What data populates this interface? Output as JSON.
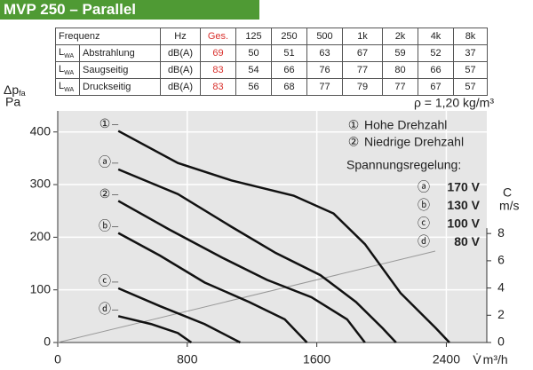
{
  "header": {
    "title": "MVP 250 – Parallel"
  },
  "table": {
    "columns": [
      "Frequenz",
      "Hz",
      "Ges.",
      "125",
      "250",
      "500",
      "1k",
      "2k",
      "4k",
      "8k"
    ],
    "symbol": "L",
    "symbol_subscript": "WA",
    "rows": [
      {
        "label": "Abstrahlung",
        "unit": "dB(A)",
        "values": [
          69,
          50,
          51,
          63,
          67,
          59,
          52,
          37
        ]
      },
      {
        "label": "Saugseitig",
        "unit": "dB(A)",
        "values": [
          83,
          54,
          66,
          76,
          77,
          80,
          66,
          57
        ]
      },
      {
        "label": "Druckseitig",
        "unit": "dB(A)",
        "values": [
          83,
          56,
          68,
          77,
          79,
          77,
          67,
          57
        ]
      }
    ],
    "total_color": "#d9302c"
  },
  "chart_data": {
    "type": "line",
    "ylabel": "Δp",
    "ylabel_subscript": "fa",
    "yunit": "Pa",
    "xlabel": "V̇",
    "xunit": "m³/h",
    "y2label": "C",
    "y2unit": "m/s",
    "annotation": "ρ = 1,20 kg/m³",
    "xlim": [
      0,
      2650
    ],
    "xticks": [
      0,
      800,
      1600,
      2400
    ],
    "ylim": [
      0,
      440
    ],
    "yticks": [
      0,
      100,
      200,
      300,
      400
    ],
    "y2lim": [
      0,
      17
    ],
    "y2ticks": [
      0,
      2,
      4,
      6,
      8
    ],
    "grid": true,
    "series": [
      {
        "name": "①",
        "color": "#111111",
        "marker_color": "#d9302c",
        "x": [
          374,
          742,
          1072,
          1457,
          1704,
          1897,
          2117,
          2336,
          2419
        ],
        "values": [
          402,
          341,
          308,
          279,
          245,
          187,
          94,
          27,
          0
        ]
      },
      {
        "name": "ⓐ",
        "color": "#111111",
        "marker_color": "#111111",
        "x": [
          374,
          742,
          1072,
          1347,
          1622,
          1842,
          2007,
          2089
        ],
        "values": [
          329,
          282,
          220,
          170,
          128,
          77,
          27,
          0
        ]
      },
      {
        "name": "②",
        "color": "#111111",
        "marker_color": "#d9302c",
        "x": [
          374,
          687,
          1017,
          1292,
          1567,
          1787,
          1897
        ],
        "values": [
          269,
          215,
          161,
          119,
          86,
          44,
          0
        ]
      },
      {
        "name": "ⓑ",
        "color": "#111111",
        "marker_color": "#111111",
        "x": [
          374,
          632,
          907,
          1182,
          1402,
          1539
        ],
        "values": [
          208,
          165,
          114,
          77,
          44,
          0
        ]
      },
      {
        "name": "ⓒ",
        "color": "#111111",
        "marker_color": "#111111",
        "x": [
          374,
          632,
          907,
          1127
        ],
        "values": [
          103,
          69,
          35,
          0
        ]
      },
      {
        "name": "ⓓ",
        "color": "#111111",
        "marker_color": "#111111",
        "x": [
          374,
          577,
          742,
          825
        ],
        "values": [
          50,
          35,
          18,
          0
        ]
      }
    ],
    "legend": {
      "speed": [
        {
          "marker": "①",
          "label": "Hohe Drehzahl",
          "color": "#d9302c"
        },
        {
          "marker": "②",
          "label": "Niedrige Drehzahl",
          "color": "#d9302c"
        }
      ],
      "control_title": "Spannungsregelung:",
      "control": [
        {
          "marker": "ⓐ",
          "label": "170 V"
        },
        {
          "marker": "ⓑ",
          "label": "130 V"
        },
        {
          "marker": "ⓒ",
          "label": "100 V"
        },
        {
          "marker": "ⓓ",
          "label": "80 V"
        }
      ]
    }
  }
}
